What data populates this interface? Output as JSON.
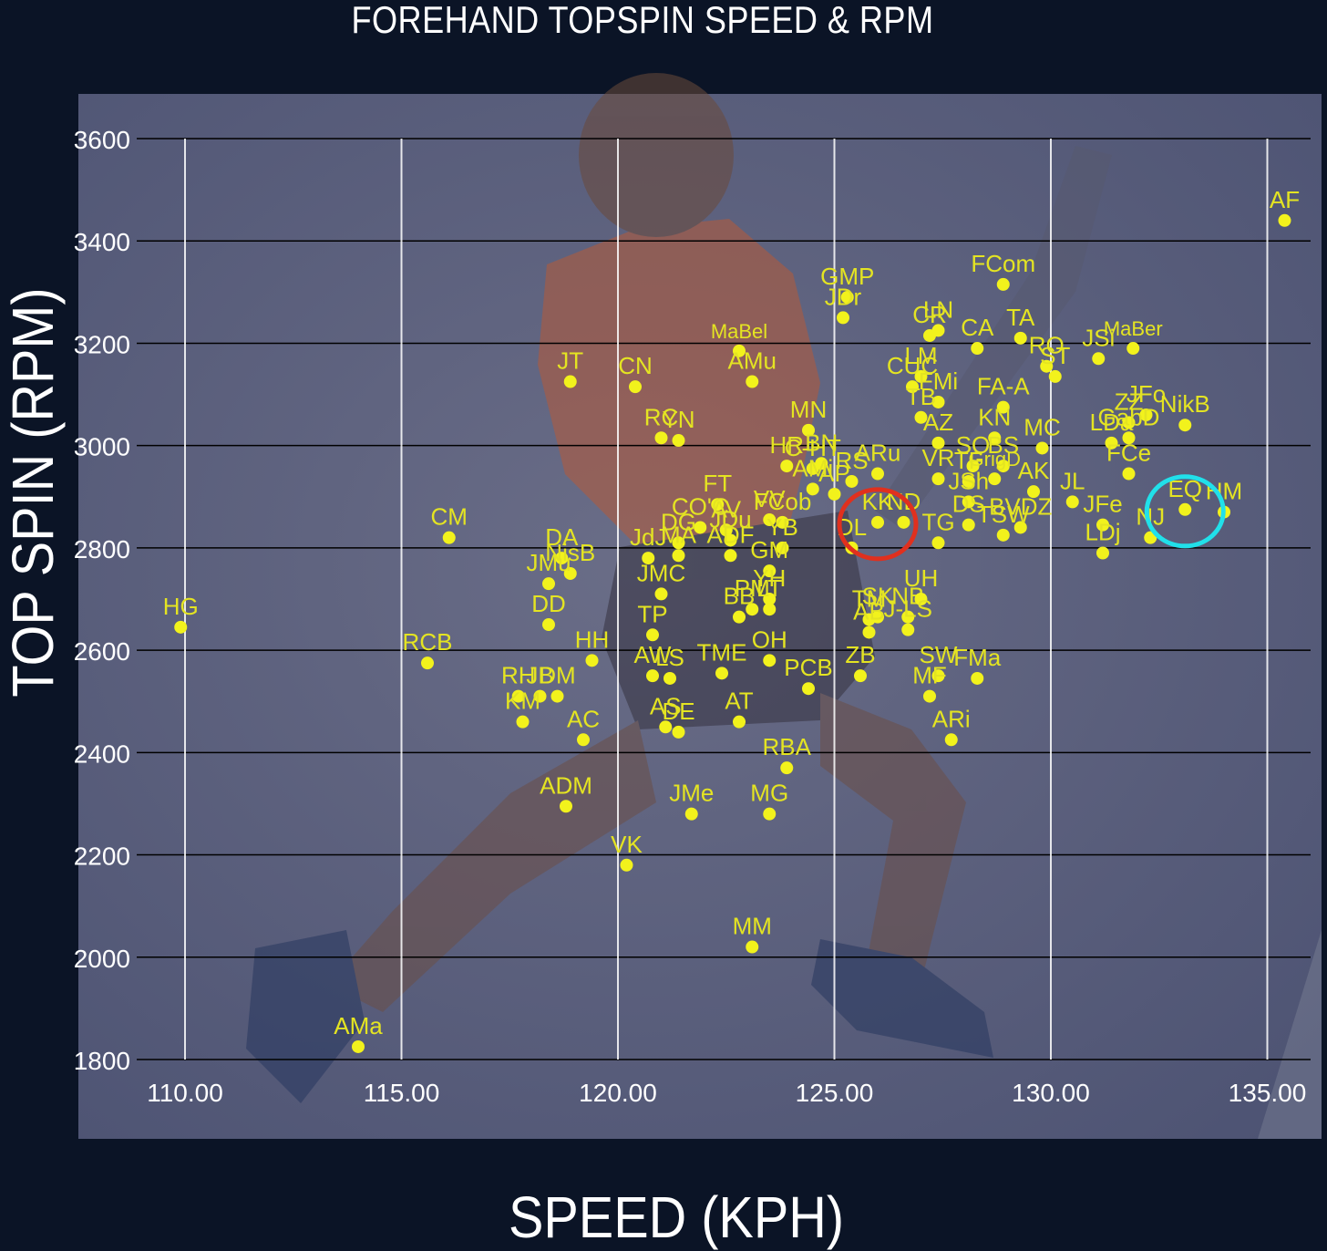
{
  "chart_data": {
    "type": "scatter",
    "title": "FOREHAND TOPSPIN SPEED & RPM",
    "xlabel": "SPEED (KPH)",
    "ylabel": "TOP SPIN (RPM)",
    "xlim": [
      108,
      136.3
    ],
    "ylim": [
      1800,
      3600
    ],
    "x_ticks": [
      "110.00",
      "115.00",
      "120.00",
      "125.00",
      "130.00",
      "135.00"
    ],
    "y_ticks": [
      "1800",
      "2000",
      "2200",
      "2400",
      "2600",
      "2800",
      "3000",
      "3200",
      "3400",
      "3600"
    ],
    "grid": "both",
    "background": "player photo (faded)",
    "colors": {
      "points": "#f2f21c",
      "labels": "#e4e422",
      "grid": "#000000",
      "vgrid": "#ffffff",
      "highlight_red": "#e0301e",
      "highlight_cyan": "#21e0ea"
    },
    "highlights": [
      {
        "color": "red",
        "label": "KK",
        "x": 126.0,
        "y": 2850
      },
      {
        "color": "cyan",
        "label": "EQ",
        "x": 133.1,
        "y": 2875
      }
    ],
    "points": [
      {
        "label": "AF",
        "x": 135.4,
        "y": 3440
      },
      {
        "label": "FCom",
        "x": 128.9,
        "y": 3315
      },
      {
        "label": "GMP",
        "x": 125.3,
        "y": 3290
      },
      {
        "label": "JDr",
        "x": 125.2,
        "y": 3250
      },
      {
        "label": "CR",
        "x": 127.2,
        "y": 3215
      },
      {
        "label": "LN",
        "x": 127.4,
        "y": 3225
      },
      {
        "label": "CA",
        "x": 128.3,
        "y": 3190
      },
      {
        "label": "TA",
        "x": 129.3,
        "y": 3210
      },
      {
        "label": "RO",
        "x": 129.9,
        "y": 3155
      },
      {
        "label": "MaBer",
        "x": 131.9,
        "y": 3190
      },
      {
        "label": "ST",
        "x": 130.1,
        "y": 3135
      },
      {
        "label": "JSi",
        "x": 131.1,
        "y": 3170
      },
      {
        "label": "LM",
        "x": 127.0,
        "y": 3135
      },
      {
        "label": "MaBel",
        "x": 122.8,
        "y": 3185
      },
      {
        "label": "AMu",
        "x": 123.1,
        "y": 3125
      },
      {
        "label": "JT",
        "x": 118.9,
        "y": 3125
      },
      {
        "label": "CN",
        "x": 120.4,
        "y": 3115
      },
      {
        "label": "CUC",
        "x": 126.8,
        "y": 3115
      },
      {
        "label": "FMi",
        "x": 127.4,
        "y": 3085
      },
      {
        "label": "FA-A",
        "x": 128.9,
        "y": 3075
      },
      {
        "label": "TB",
        "x": 127.0,
        "y": 3055
      },
      {
        "label": "AZ",
        "x": 127.4,
        "y": 3005
      },
      {
        "label": "KN",
        "x": 128.7,
        "y": 3015
      },
      {
        "label": "MC",
        "x": 129.8,
        "y": 2995
      },
      {
        "label": "LDa",
        "x": 131.4,
        "y": 3005
      },
      {
        "label": "JFo",
        "x": 132.2,
        "y": 3060
      },
      {
        "label": "ZZ",
        "x": 131.8,
        "y": 3045
      },
      {
        "label": "NikB",
        "x": 133.1,
        "y": 3040
      },
      {
        "label": "GabD",
        "x": 131.8,
        "y": 3015
      },
      {
        "label": "MN",
        "x": 124.4,
        "y": 3030
      },
      {
        "label": "RC",
        "x": 121.0,
        "y": 3015
      },
      {
        "label": "YN",
        "x": 121.4,
        "y": 3010
      },
      {
        "label": "HR",
        "x": 123.9,
        "y": 2960
      },
      {
        "label": "C-HT",
        "x": 124.5,
        "y": 2955
      },
      {
        "label": "BN",
        "x": 124.7,
        "y": 2965
      },
      {
        "label": "ARu",
        "x": 126.0,
        "y": 2945
      },
      {
        "label": "RS",
        "x": 125.4,
        "y": 2930
      },
      {
        "label": "VR",
        "x": 127.4,
        "y": 2935
      },
      {
        "label": "SO",
        "x": 128.2,
        "y": 2960
      },
      {
        "label": "BS",
        "x": 128.9,
        "y": 2960
      },
      {
        "label": "TF",
        "x": 128.1,
        "y": 2930
      },
      {
        "label": "GrigD",
        "x": 128.7,
        "y": 2935
      },
      {
        "label": "AK",
        "x": 129.6,
        "y": 2910
      },
      {
        "label": "JL",
        "x": 130.5,
        "y": 2890
      },
      {
        "label": "FCe",
        "x": 131.8,
        "y": 2945
      },
      {
        "label": "EQ",
        "x": 133.1,
        "y": 2875
      },
      {
        "label": "HM",
        "x": 134.0,
        "y": 2870
      },
      {
        "label": "FT",
        "x": 122.3,
        "y": 2885
      },
      {
        "label": "AMi",
        "x": 124.5,
        "y": 2915
      },
      {
        "label": "AP",
        "x": 125.0,
        "y": 2905
      },
      {
        "label": "TG",
        "x": 127.4,
        "y": 2810
      },
      {
        "label": "JSh",
        "x": 128.1,
        "y": 2890
      },
      {
        "label": "JFe",
        "x": 131.2,
        "y": 2845
      },
      {
        "label": "CO'C",
        "x": 121.9,
        "y": 2840
      },
      {
        "label": "VV",
        "x": 123.5,
        "y": 2855
      },
      {
        "label": "AV",
        "x": 122.5,
        "y": 2835
      },
      {
        "label": "FCob",
        "x": 123.8,
        "y": 2850
      },
      {
        "label": "KK",
        "x": 126.0,
        "y": 2850
      },
      {
        "label": "DS",
        "x": 128.1,
        "y": 2845
      },
      {
        "label": "BVDZ",
        "x": 129.3,
        "y": 2840
      },
      {
        "label": "NJ",
        "x": 132.3,
        "y": 2820
      },
      {
        "label": "CM",
        "x": 116.1,
        "y": 2820
      },
      {
        "label": "DG",
        "x": 121.4,
        "y": 2810
      },
      {
        "label": "JdJ",
        "x": 120.7,
        "y": 2780
      },
      {
        "label": "JDu",
        "x": 122.6,
        "y": 2815
      },
      {
        "label": "YB",
        "x": 123.8,
        "y": 2800
      },
      {
        "label": "ND",
        "x": 126.6,
        "y": 2850
      },
      {
        "label": "DL",
        "x": 125.4,
        "y": 2800
      },
      {
        "label": "TSW",
        "x": 128.9,
        "y": 2825
      },
      {
        "label": "LDj",
        "x": 131.2,
        "y": 2790
      },
      {
        "label": "MA",
        "x": 121.4,
        "y": 2785
      },
      {
        "label": "ADF",
        "x": 122.6,
        "y": 2785
      },
      {
        "label": "DA",
        "x": 118.7,
        "y": 2780
      },
      {
        "label": "NisB",
        "x": 118.9,
        "y": 2750
      },
      {
        "label": "GM",
        "x": 123.5,
        "y": 2755
      },
      {
        "label": "JMu",
        "x": 118.4,
        "y": 2730
      },
      {
        "label": "JMC",
        "x": 121.0,
        "y": 2710
      },
      {
        "label": "PM",
        "x": 123.1,
        "y": 2680
      },
      {
        "label": "YH",
        "x": 123.5,
        "y": 2700
      },
      {
        "label": "SK",
        "x": 126.0,
        "y": 2665
      },
      {
        "label": "TM",
        "x": 125.8,
        "y": 2660
      },
      {
        "label": "NB",
        "x": 126.7,
        "y": 2665
      },
      {
        "label": "UH",
        "x": 127.0,
        "y": 2700
      },
      {
        "label": "HG",
        "x": 109.9,
        "y": 2645
      },
      {
        "label": "DD",
        "x": 118.4,
        "y": 2650
      },
      {
        "label": "TP",
        "x": 120.8,
        "y": 2630
      },
      {
        "label": "BB",
        "x": 122.8,
        "y": 2665
      },
      {
        "label": "LT",
        "x": 123.5,
        "y": 2680
      },
      {
        "label": "AB",
        "x": 125.8,
        "y": 2635
      },
      {
        "label": "J-LS",
        "x": 126.7,
        "y": 2640
      },
      {
        "label": "RCB",
        "x": 115.6,
        "y": 2575
      },
      {
        "label": "HH",
        "x": 119.4,
        "y": 2580
      },
      {
        "label": "TME",
        "x": 122.4,
        "y": 2555
      },
      {
        "label": "OH",
        "x": 123.5,
        "y": 2580
      },
      {
        "label": "ZB",
        "x": 125.6,
        "y": 2550
      },
      {
        "label": "SW",
        "x": 127.4,
        "y": 2550
      },
      {
        "label": "FMa",
        "x": 128.3,
        "y": 2545
      },
      {
        "label": "AW",
        "x": 120.8,
        "y": 2550
      },
      {
        "label": "LS",
        "x": 121.2,
        "y": 2545
      },
      {
        "label": "PCB",
        "x": 124.4,
        "y": 2525
      },
      {
        "label": "RH",
        "x": 117.7,
        "y": 2510
      },
      {
        "label": "JB",
        "x": 118.2,
        "y": 2510
      },
      {
        "label": "DM",
        "x": 118.6,
        "y": 2510
      },
      {
        "label": "MF",
        "x": 127.2,
        "y": 2510
      },
      {
        "label": "AC",
        "x": 119.2,
        "y": 2425
      },
      {
        "label": "KM",
        "x": 117.8,
        "y": 2460
      },
      {
        "label": "AT",
        "x": 122.8,
        "y": 2460
      },
      {
        "label": "AS",
        "x": 121.1,
        "y": 2450
      },
      {
        "label": "DE",
        "x": 121.4,
        "y": 2440
      },
      {
        "label": "ARi",
        "x": 127.7,
        "y": 2425
      },
      {
        "label": "RBA",
        "x": 123.9,
        "y": 2370
      },
      {
        "label": "ADM",
        "x": 118.8,
        "y": 2295
      },
      {
        "label": "JMe",
        "x": 121.7,
        "y": 2280
      },
      {
        "label": "MG",
        "x": 123.5,
        "y": 2280
      },
      {
        "label": "VK",
        "x": 120.2,
        "y": 2180
      },
      {
        "label": "MM",
        "x": 123.1,
        "y": 2020
      },
      {
        "label": "AMa",
        "x": 114.0,
        "y": 1825
      }
    ]
  }
}
